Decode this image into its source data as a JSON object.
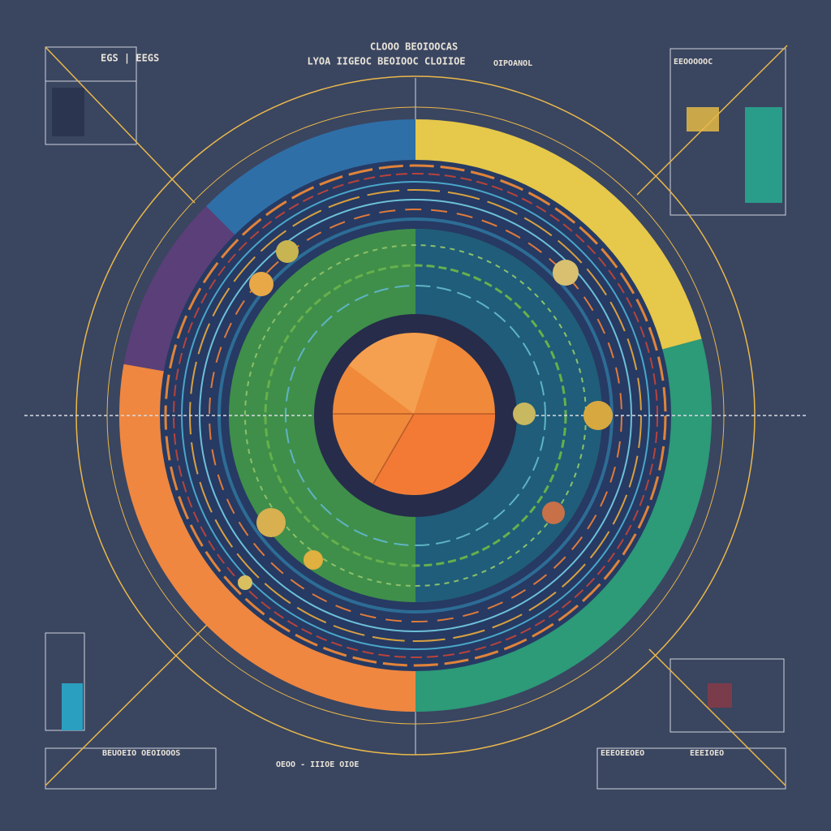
{
  "header": {
    "title": "CLOOO BEOIOOCAS",
    "subtitle": "LYOA IIGEOC BEOIOOC CLOIIOE",
    "left_label": "EGS | EEGS",
    "right_label": "OIPOANOL",
    "right_box_label": "EEOOOOOC"
  },
  "footer": {
    "left": "BEUOEIO OEOIOOOS",
    "center": "OEOO - IIIOE OIOE",
    "right": "EEEOEEOEO",
    "right_2": "EEEIOEO"
  }
}
